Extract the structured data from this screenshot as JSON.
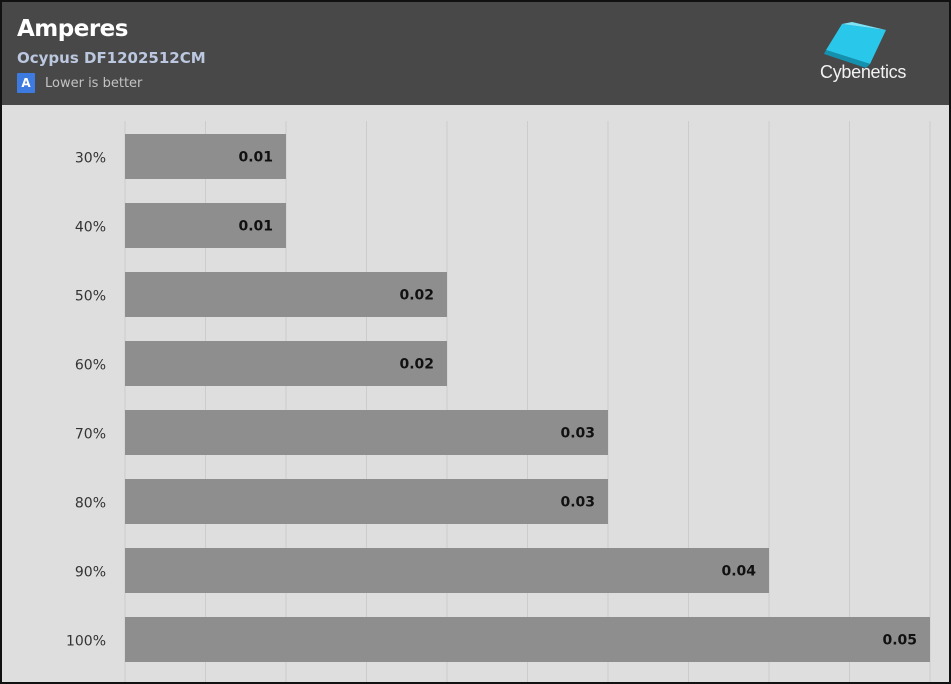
{
  "header": {
    "title": "Amperes",
    "subtitle": "Ocypus DF1202512CM",
    "legend_badge": "A",
    "legend_text": "Lower is better",
    "logo_text": "Cybenetics",
    "logo_icon": "cybenetics-cube-icon"
  },
  "colors": {
    "header_bg": "#484848",
    "plot_bg": "#dedede",
    "bar": "#8e8e8e",
    "legend_badge": "#3d7be0",
    "logo_cube": "#29c7ea"
  },
  "chart_data": {
    "type": "bar",
    "orientation": "horizontal",
    "categories": [
      "30%",
      "40%",
      "50%",
      "60%",
      "70%",
      "80%",
      "90%",
      "100%"
    ],
    "values": [
      0.01,
      0.01,
      0.02,
      0.02,
      0.03,
      0.03,
      0.04,
      0.05
    ],
    "data_labels": [
      "0.01",
      "0.01",
      "0.02",
      "0.02",
      "0.03",
      "0.03",
      "0.04",
      "0.05"
    ],
    "title": "Amperes",
    "subtitle": "Ocypus DF1202512CM",
    "xlim": [
      0,
      0.05
    ],
    "grid": true,
    "legend": [
      {
        "badge": "A",
        "text": "Lower is better"
      }
    ]
  }
}
